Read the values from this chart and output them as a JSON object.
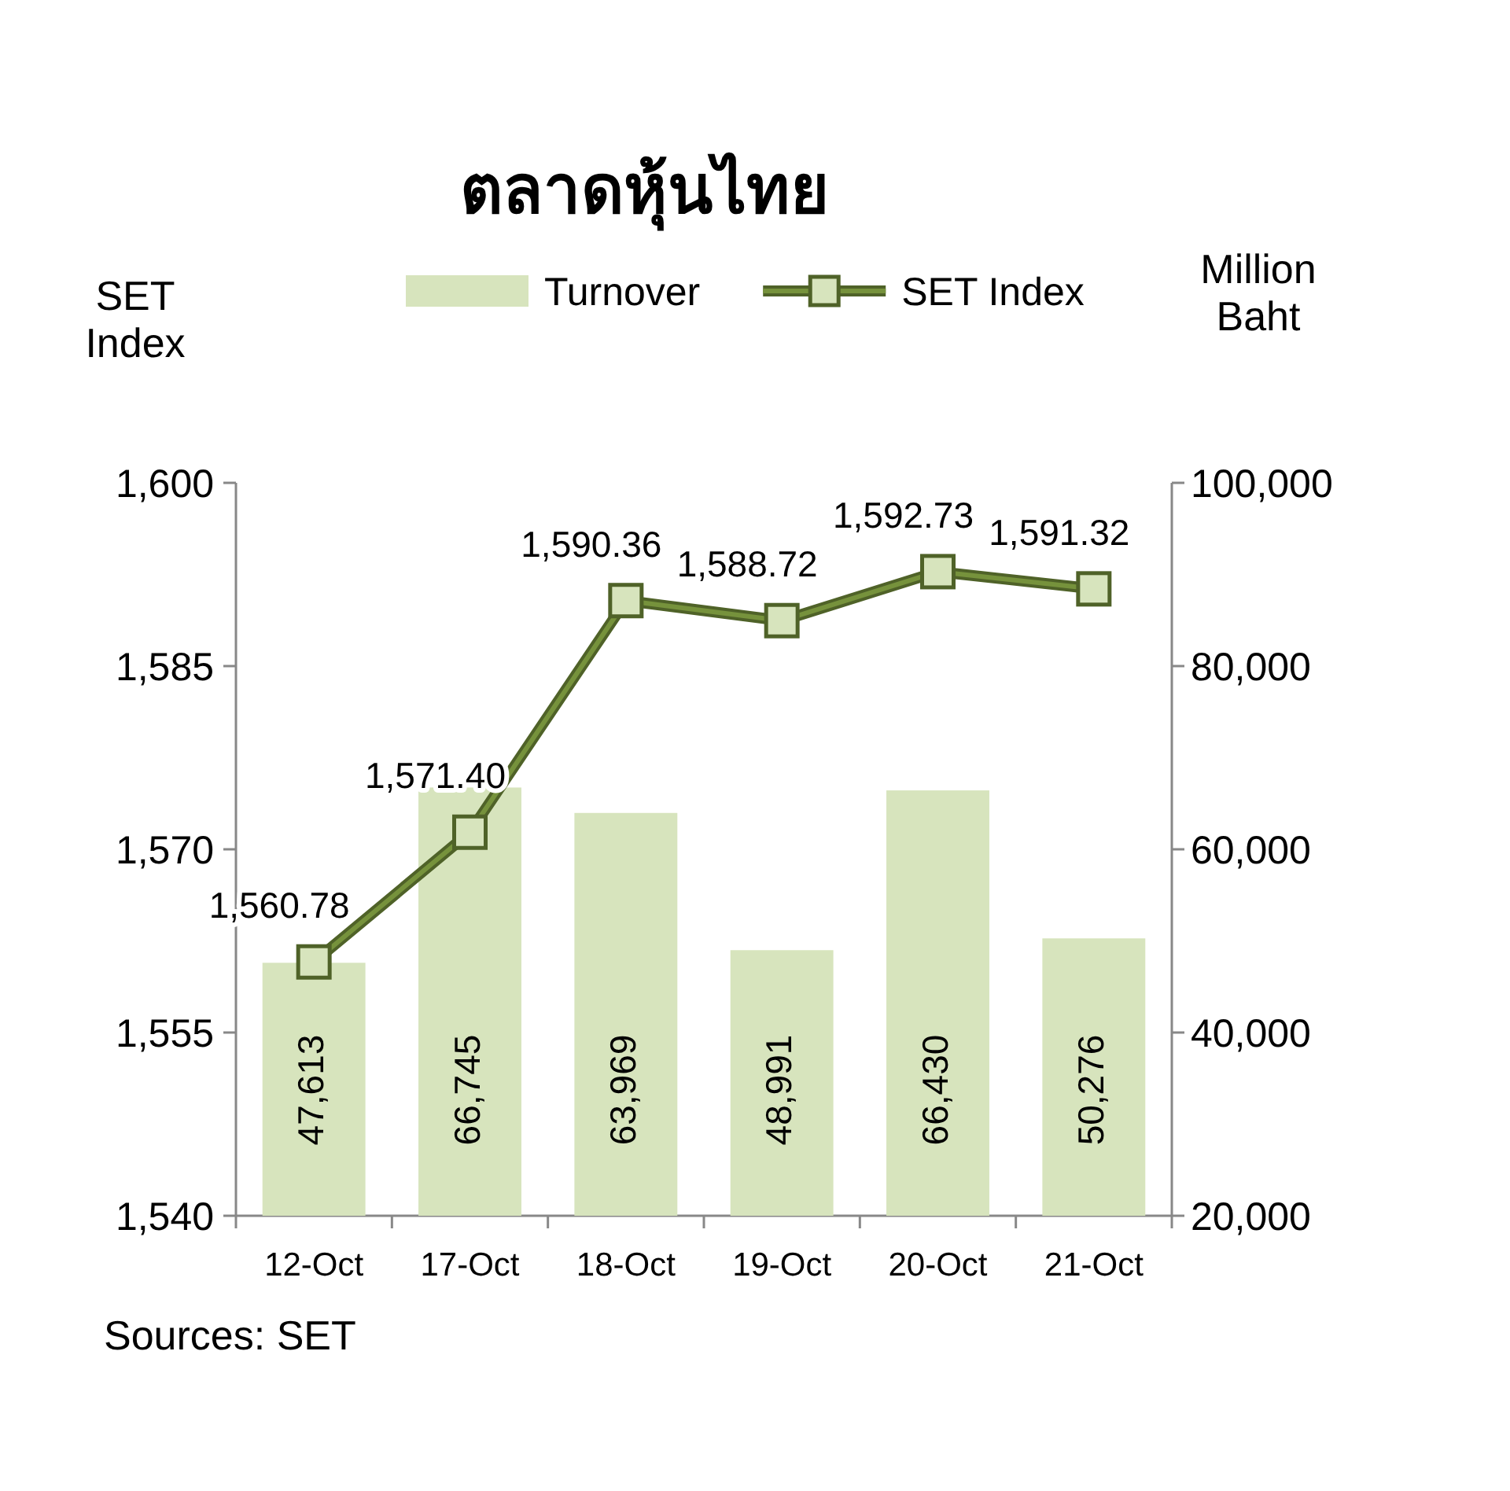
{
  "chart_data": {
    "type": "bar",
    "title": "ตลาดหุ้นไทย",
    "ylabel": "SET Index",
    "y2label": "Million Baht",
    "categories": [
      "12-Oct",
      "17-Oct",
      "18-Oct",
      "19-Oct",
      "20-Oct",
      "21-Oct"
    ],
    "series": [
      {
        "name": "Turnover",
        "axis": "y2",
        "color": "#d7e4bd",
        "values": [
          47613,
          66745,
          63969,
          48991,
          66430,
          50276
        ],
        "value_labels": [
          "47,613",
          "66,745",
          "63,969",
          "48,991",
          "66,430",
          "50,276"
        ]
      },
      {
        "name": "SET Index",
        "type": "line",
        "color": "#76923c",
        "values": [
          1560.78,
          1571.4,
          1590.36,
          1588.72,
          1592.73,
          1591.32
        ],
        "value_labels": [
          "1,560.78",
          "1,571.40",
          "1,590.36",
          "1,588.72",
          "1,592.73",
          "1,591.32"
        ]
      }
    ],
    "ylim": [
      1540,
      1600
    ],
    "yticks": [
      {
        "value": 1540,
        "label": "1,540"
      },
      {
        "value": 1555,
        "label": "1,555"
      },
      {
        "value": 1570,
        "label": "1,570"
      },
      {
        "value": 1585,
        "label": "1,585"
      },
      {
        "value": 1600,
        "label": "1,600"
      }
    ],
    "y2lim": [
      20000,
      100000
    ],
    "y2ticks": [
      {
        "value": 20000,
        "label": "20,000"
      },
      {
        "value": 40000,
        "label": "40,000"
      },
      {
        "value": 60000,
        "label": "60,000"
      },
      {
        "value": 80000,
        "label": "80,000"
      },
      {
        "value": 100000,
        "label": "100,000"
      }
    ],
    "legend": "top",
    "marker": "square",
    "grid": false,
    "annotations": [
      "Sources: SET"
    ]
  }
}
